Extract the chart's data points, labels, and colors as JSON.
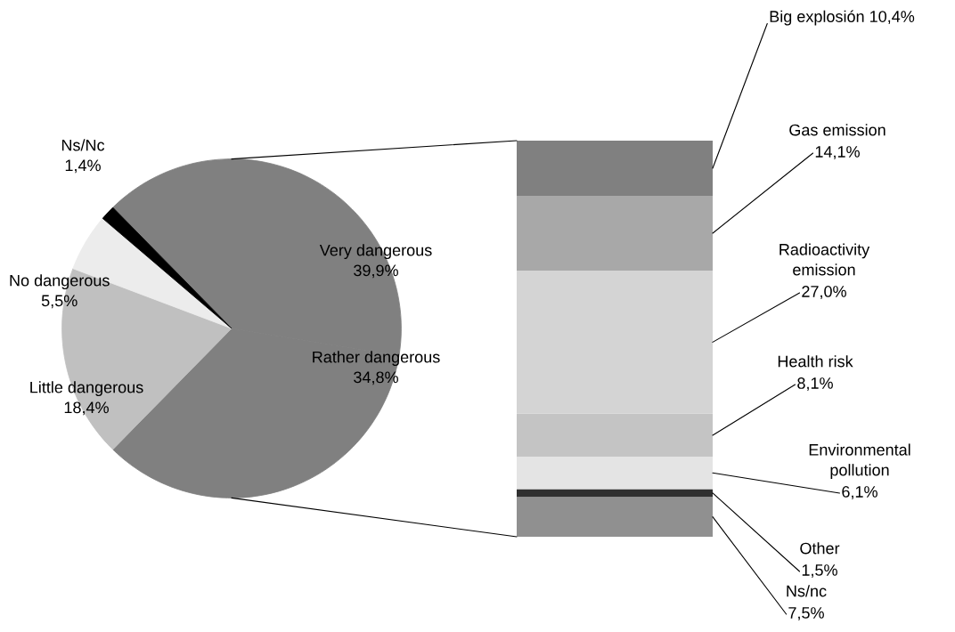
{
  "chart_data": [
    {
      "type": "pie",
      "categories": [
        "Very dangerous",
        "Rather dangerous",
        "Little dangerous",
        "No dangerous",
        "Ns/Nc"
      ],
      "values": [
        39.9,
        34.8,
        18.4,
        5.5,
        1.4
      ],
      "colors": [
        "#808080",
        "#808080",
        "#c0c0c0",
        "#ececec",
        "#000000"
      ],
      "value_labels": [
        "39,9%",
        "34,8%",
        "18,4%",
        "5,5%",
        "1,4%"
      ]
    },
    {
      "type": "bar",
      "stacked": true,
      "categories": [
        null
      ],
      "series": [
        {
          "name": "Ns/nc",
          "color": "#909090",
          "values": [
            7.5
          ],
          "value_labels": [
            "7,5%"
          ]
        },
        {
          "name": "Other",
          "color": "#303030",
          "values": [
            1.5
          ],
          "value_labels": [
            "1,5%"
          ]
        },
        {
          "name": "Environmental pollution",
          "color": "#e4e4e4",
          "values": [
            6.1
          ],
          "value_labels": [
            "6,1%"
          ]
        },
        {
          "name": "Health risk",
          "color": "#c4c4c4",
          "values": [
            8.1
          ],
          "value_labels": [
            "8,1%"
          ]
        },
        {
          "name": "Radioactivity emission",
          "color": "#d4d4d4",
          "values": [
            27.0
          ],
          "value_labels": [
            "27,0%"
          ]
        },
        {
          "name": "Gas emission",
          "color": "#a8a8a8",
          "values": [
            14.1
          ],
          "value_labels": [
            "14,1%"
          ]
        },
        {
          "name": "Big explosión",
          "color": "#808080",
          "values": [
            10.4
          ],
          "value_labels": [
            "10,4%"
          ]
        }
      ]
    }
  ]
}
